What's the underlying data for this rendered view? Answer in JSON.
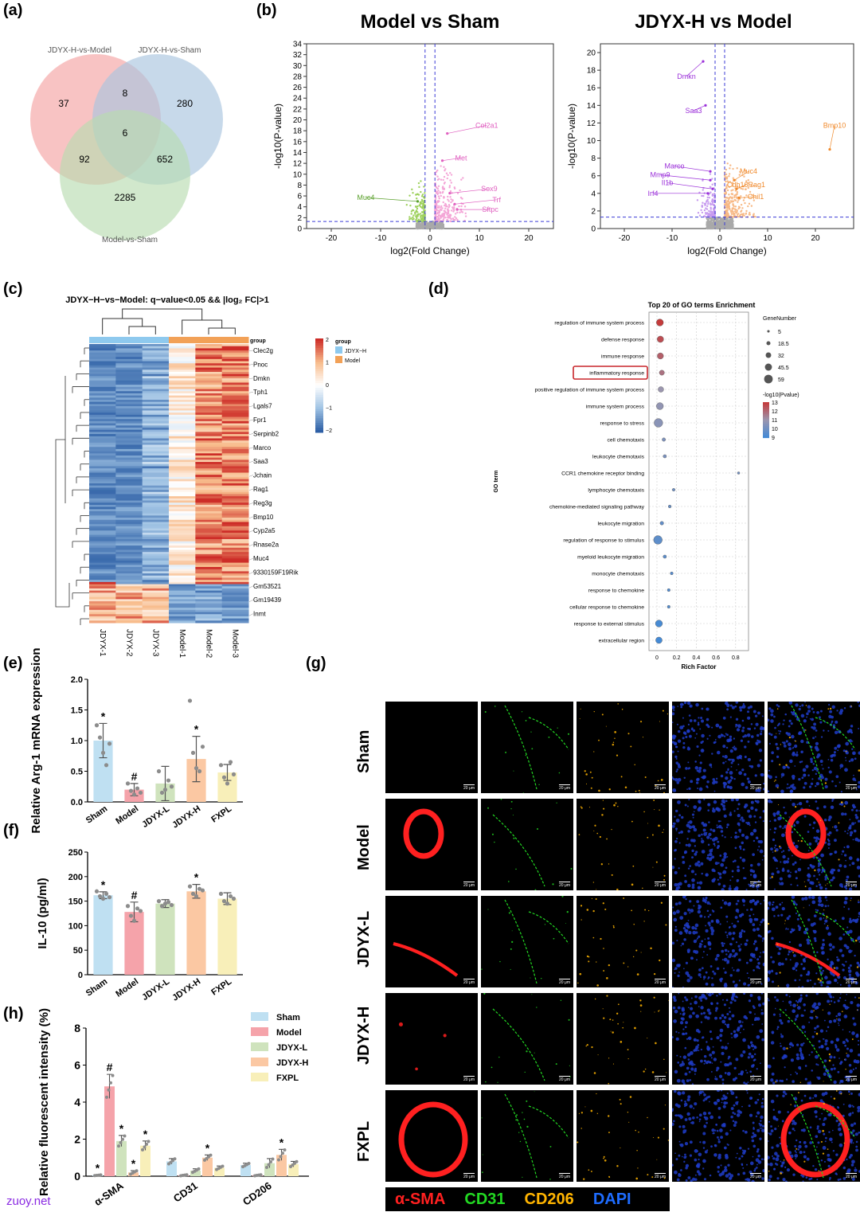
{
  "panels": {
    "a": "(a)",
    "b": "(b)",
    "c": "(c)",
    "d": "(d)",
    "e": "(e)",
    "f": "(f)",
    "g": "(g)",
    "h": "(h)"
  },
  "venn": {
    "sets": [
      "JDYX-H-vs-Model",
      "JDYX-H-vs-Sham",
      "Model-vs-Sham"
    ],
    "colors": [
      "#f4a3a3",
      "#a9c4de",
      "#b9dcb0"
    ],
    "counts": {
      "a_only": "37",
      "ab": "8",
      "b_only": "280",
      "abc": "6",
      "ac": "92",
      "bc": "652",
      "c_only": "2285"
    }
  },
  "volcano": [
    {
      "title": "Model vs Sham",
      "xlabel": "log2(Fold Change)",
      "ylabel": "-log10(P-value)",
      "xlim": [
        -25,
        25
      ],
      "ylim": [
        0,
        34
      ],
      "xticks": [
        "-20",
        "-10",
        "0",
        "10",
        "20"
      ],
      "yticks": [
        "0",
        "2",
        "4",
        "6",
        "8",
        "10",
        "12",
        "14",
        "16",
        "18",
        "20",
        "22",
        "24",
        "26",
        "28",
        "30",
        "32",
        "34"
      ],
      "down_color": "#9ed15d",
      "up_color": "#f4a6d7",
      "genes": [
        {
          "name": "Col2a1",
          "x": 3.5,
          "y": 17.5,
          "lx": 11.5,
          "ly": 19,
          "color": "#e060c0"
        },
        {
          "name": "Met",
          "x": 2.5,
          "y": 12.5,
          "lx": 6.3,
          "ly": 13,
          "color": "#e060c0"
        },
        {
          "name": "Sox9",
          "x": 4.0,
          "y": 6.5,
          "lx": 12.0,
          "ly": 7.3,
          "color": "#e060c0"
        },
        {
          "name": "Trf",
          "x": 5.0,
          "y": 4.5,
          "lx": 13.5,
          "ly": 5.3,
          "color": "#e060c0"
        },
        {
          "name": "Sftpc",
          "x": 5.5,
          "y": 3.5,
          "lx": 12.2,
          "ly": 3.5,
          "color": "#e060c0"
        },
        {
          "name": "Muc4",
          "x": -2.5,
          "y": 5.0,
          "lx": -13.0,
          "ly": 5.7,
          "color": "#5aa02c"
        }
      ]
    },
    {
      "title": "JDYX-H vs Model",
      "xlabel": "log2(Fold Change)",
      "ylabel": "-log10(P-value)",
      "xlim": [
        -25,
        28
      ],
      "ylim": [
        0,
        21
      ],
      "xticks": [
        "-20",
        "-10",
        "0",
        "10",
        "20"
      ],
      "yticks": [
        "0",
        "2",
        "4",
        "6",
        "8",
        "10",
        "12",
        "14",
        "16",
        "18",
        "20"
      ],
      "down_color": "#c79bef",
      "up_color": "#f7b986",
      "genes": [
        {
          "name": "Dmkn",
          "x": -3.5,
          "y": 19.0,
          "lx": -7.0,
          "ly": 17.3,
          "color": "#9b30d9"
        },
        {
          "name": "Saa3",
          "x": -3.0,
          "y": 14.0,
          "lx": -5.5,
          "ly": 13.4,
          "color": "#9b30d9"
        },
        {
          "name": "Marco",
          "x": -2.0,
          "y": 6.5,
          "lx": -9.5,
          "ly": 7.1,
          "color": "#9b30d9"
        },
        {
          "name": "Mmp9",
          "x": -2.0,
          "y": 5.5,
          "lx": -12.5,
          "ly": 6.1,
          "color": "#9b30d9"
        },
        {
          "name": "Il1b",
          "x": -1.5,
          "y": 4.5,
          "lx": -11.0,
          "ly": 5.2,
          "color": "#9b30d9"
        },
        {
          "name": "Irf4",
          "x": -2.5,
          "y": 4.0,
          "lx": -14.0,
          "ly": 4.0,
          "color": "#9b30d9"
        },
        {
          "name": "Bmp10",
          "x": 23.0,
          "y": 9.0,
          "lx": 24.0,
          "ly": 11.7,
          "color": "#f08a2c"
        },
        {
          "name": "Muc4",
          "x": 3.0,
          "y": 5.5,
          "lx": 6.0,
          "ly": 6.5,
          "color": "#f08a2c"
        },
        {
          "name": "Cdh16Rag1",
          "x": 3.5,
          "y": 4.5,
          "lx": 5.5,
          "ly": 5.0,
          "color": "#f08a2c"
        },
        {
          "name": "Chil1",
          "x": 4.0,
          "y": 3.5,
          "lx": 7.5,
          "ly": 3.6,
          "color": "#f08a2c"
        }
      ]
    }
  ],
  "heatmap": {
    "title": "JDYX−H−vs−Model: q−value<0.05 && |log₂ FC|>1",
    "columns": [
      "JDYX-1",
      "JDYX-2",
      "JDYX-3",
      "Model-1",
      "Model-2",
      "Model-3"
    ],
    "group_label": "group",
    "groups": [
      {
        "name": "JDYX−H",
        "color": "#8ec9ee"
      },
      {
        "name": "Model",
        "color": "#f2a157"
      }
    ],
    "genes": [
      "Clec2g",
      "Pnoc",
      "Dmkn",
      "Tph1",
      "Lgals7",
      "Fpr1",
      "Serpinb2",
      "Marco",
      "Saa3",
      "Jchain",
      "Rag1",
      "Reg3g",
      "Bmp10",
      "Cyp2a5",
      "Rnase2a",
      "Muc4",
      "9330159F19Rik",
      "Gm53521",
      "Gm19439",
      "Inmt"
    ],
    "scale_ticks": [
      "2",
      "1",
      "0",
      "−1",
      "−2"
    ]
  },
  "go": {
    "title": "Top 20 of GO terms Enrichment",
    "xlabel": "Rich Factor",
    "ylabel": "GO term",
    "xticks": [
      "0",
      "0.2",
      "0.4",
      "0.6",
      "0.8"
    ],
    "size_legend_title": "GeneNumber",
    "size_legend": [
      "5",
      "18.5",
      "32",
      "45.5",
      "59"
    ],
    "color_legend_title": "-log10(Pvalue)",
    "color_legend": [
      "13",
      "12",
      "11",
      "10",
      "9"
    ],
    "highlighted": "inflammatory response",
    "terms": [
      {
        "name": "regulation of immune system process",
        "rf": 0.03,
        "genes": 45,
        "p": 13.0
      },
      {
        "name": "defense response",
        "rf": 0.035,
        "genes": 40,
        "p": 12.6
      },
      {
        "name": "immune response",
        "rf": 0.035,
        "genes": 38,
        "p": 12.2
      },
      {
        "name": "inflammatory response",
        "rf": 0.05,
        "genes": 28,
        "p": 11.8
      },
      {
        "name": "positive regulation of immune system process",
        "rf": 0.04,
        "genes": 32,
        "p": 11.0
      },
      {
        "name": "immune system process",
        "rf": 0.03,
        "genes": 45,
        "p": 10.8
      },
      {
        "name": "response to stress",
        "rf": 0.015,
        "genes": 59,
        "p": 10.6
      },
      {
        "name": "cell chemotaxis",
        "rf": 0.07,
        "genes": 14,
        "p": 10.3
      },
      {
        "name": "leukocyte chemotaxis",
        "rf": 0.08,
        "genes": 12,
        "p": 10.2
      },
      {
        "name": "CCR1 chemokine receptor binding",
        "rf": 0.83,
        "genes": 5,
        "p": 10.0
      },
      {
        "name": "lymphocyte chemotaxis",
        "rf": 0.17,
        "genes": 8,
        "p": 9.9
      },
      {
        "name": "chemokine-mediated signaling pathway",
        "rf": 0.13,
        "genes": 9,
        "p": 9.8
      },
      {
        "name": "leukocyte migration",
        "rf": 0.05,
        "genes": 15,
        "p": 9.7
      },
      {
        "name": "regulation of response to stimulus",
        "rf": 0.01,
        "genes": 59,
        "p": 9.6
      },
      {
        "name": "myeloid leukocyte migration",
        "rf": 0.08,
        "genes": 12,
        "p": 9.5
      },
      {
        "name": "monocyte chemotaxis",
        "rf": 0.15,
        "genes": 9,
        "p": 9.4
      },
      {
        "name": "response to chemokine",
        "rf": 0.12,
        "genes": 9,
        "p": 9.3
      },
      {
        "name": "cellular response to chemokine",
        "rf": 0.12,
        "genes": 9,
        "p": 9.3
      },
      {
        "name": "response to external stimulus",
        "rf": 0.02,
        "genes": 45,
        "p": 9.1
      },
      {
        "name": "extracellular region",
        "rf": 0.02,
        "genes": 40,
        "p": 9.0
      }
    ]
  },
  "bar_e": {
    "ylabel": "Relative Arg-1 mRNA expression",
    "yticks": [
      "0.0",
      "0.5",
      "1.0",
      "1.5",
      "2.0"
    ],
    "ylim": [
      0,
      2.0
    ],
    "categories": [
      "Sham",
      "Model",
      "JDYX-L",
      "JDYX-H",
      "FXPL"
    ],
    "values": [
      1.0,
      0.2,
      0.3,
      0.7,
      0.48
    ],
    "errors": [
      0.28,
      0.1,
      0.28,
      0.37,
      0.13
    ],
    "marks": [
      "*",
      "#",
      "",
      "*",
      ""
    ],
    "points": [
      [
        1.25,
        1.05,
        0.8,
        0.6,
        0.95
      ],
      [
        0.3,
        0.18,
        0.12,
        0.22,
        0.15
      ],
      [
        0.5,
        0.15,
        0.2,
        0.35,
        0.25
      ],
      [
        1.65,
        0.8,
        0.55,
        0.5,
        0.9
      ],
      [
        0.6,
        0.4,
        0.3,
        0.65,
        0.45
      ]
    ],
    "colors": [
      "#bfe0f2",
      "#f5a3aa",
      "#cfe3bd",
      "#fbc8a3",
      "#f8efb9"
    ]
  },
  "bar_f": {
    "ylabel": "IL-10 (pg/ml)",
    "yticks": [
      "0",
      "50",
      "100",
      "150",
      "200",
      "250"
    ],
    "ylim": [
      0,
      250
    ],
    "categories": [
      "Sham",
      "Model",
      "JDYX-L",
      "JDYX-H",
      "FXPL"
    ],
    "values": [
      162,
      128,
      145,
      170,
      155
    ],
    "errors": [
      7,
      20,
      8,
      14,
      12
    ],
    "marks": [
      "*",
      "#",
      "",
      "*",
      ""
    ],
    "points": [
      [
        170,
        160,
        155,
        165,
        158
      ],
      [
        140,
        120,
        110,
        135,
        130
      ],
      [
        150,
        140,
        145,
        148,
        142
      ],
      [
        180,
        165,
        160,
        175,
        172
      ],
      [
        165,
        150,
        145,
        160,
        155
      ]
    ],
    "colors": [
      "#bfe0f2",
      "#f5a3aa",
      "#cfe3bd",
      "#fbc8a3",
      "#f8efb9"
    ]
  },
  "bar_h": {
    "ylabel": "Relative fluorescent intensity (%)",
    "yticks": [
      "0",
      "2",
      "4",
      "6",
      "8"
    ],
    "ylim": [
      0,
      8
    ],
    "categories": [
      "α-SMA",
      "CD31",
      "CD206"
    ],
    "series": [
      {
        "name": "Sham",
        "values": [
          0.05,
          0.8,
          0.6
        ],
        "errors": [
          0.02,
          0.15,
          0.1
        ],
        "marks": [
          "*",
          "",
          ""
        ]
      },
      {
        "name": "Model",
        "values": [
          4.85,
          0.05,
          0.05
        ],
        "errors": [
          0.65,
          0.03,
          0.03
        ],
        "marks": [
          "#",
          "",
          ""
        ]
      },
      {
        "name": "JDYX-L",
        "values": [
          1.9,
          0.3,
          0.7
        ],
        "errors": [
          0.3,
          0.1,
          0.25
        ],
        "marks": [
          "*",
          "",
          ""
        ]
      },
      {
        "name": "JDYX-H",
        "values": [
          0.2,
          1.0,
          1.15
        ],
        "errors": [
          0.1,
          0.15,
          0.3
        ],
        "marks": [
          "*",
          "*",
          "*"
        ]
      },
      {
        "name": "FXPL",
        "values": [
          1.65,
          0.45,
          0.65
        ],
        "errors": [
          0.25,
          0.1,
          0.15
        ],
        "marks": [
          "*",
          "",
          ""
        ]
      }
    ],
    "colors": [
      "#bfe0f2",
      "#f5a3aa",
      "#cfe3bd",
      "#fbc8a3",
      "#f8efb9"
    ]
  },
  "micrographs": {
    "rows": [
      "Sham",
      "Model",
      "JDYX-L",
      "JDYX-H",
      "FXPL"
    ],
    "scale_label": "20 μm",
    "channels": [
      {
        "name": "α-SMA",
        "color": "#ff2020"
      },
      {
        "name": "CD31",
        "color": "#22d822"
      },
      {
        "name": "CD206",
        "color": "#ffb400"
      },
      {
        "name": "DAPI",
        "color": "#1e6cff"
      }
    ]
  },
  "watermark": "zuoy.net"
}
